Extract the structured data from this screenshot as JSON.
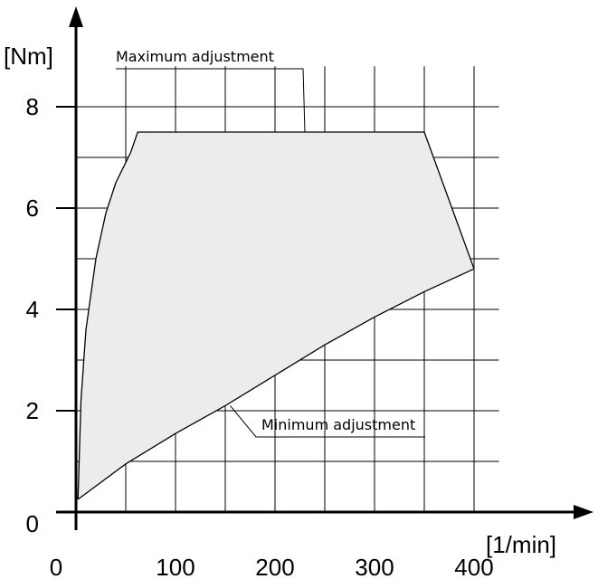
{
  "chart_data": {
    "type": "area",
    "title": "",
    "xlabel": "[1/min]",
    "ylabel": "[Nm]",
    "xlim": [
      0,
      400
    ],
    "ylim": [
      0,
      9
    ],
    "x_ticks": [
      0,
      100,
      200,
      300,
      400
    ],
    "y_ticks": [
      0,
      2,
      4,
      6,
      8
    ],
    "x_tick_labels": [
      "0",
      "100",
      "200",
      "300",
      "400"
    ],
    "y_tick_labels": [
      "0",
      "2",
      "4",
      "6",
      "8"
    ],
    "grid": true,
    "fill_color": "#ececec",
    "line_color": "#000000",
    "region": {
      "upper_boundary": [
        {
          "x": 2,
          "y": 0.25
        },
        {
          "x": 5,
          "y": 2.2
        },
        {
          "x": 10,
          "y": 3.6
        },
        {
          "x": 20,
          "y": 5.0
        },
        {
          "x": 30,
          "y": 5.9
        },
        {
          "x": 40,
          "y": 6.5
        },
        {
          "x": 55,
          "y": 7.1
        },
        {
          "x": 62,
          "y": 7.5
        },
        {
          "x": 350,
          "y": 7.5
        },
        {
          "x": 400,
          "y": 4.8
        }
      ],
      "lower_boundary": [
        {
          "x": 2,
          "y": 0.25
        },
        {
          "x": 50,
          "y": 0.95
        },
        {
          "x": 100,
          "y": 1.55
        },
        {
          "x": 150,
          "y": 2.1
        },
        {
          "x": 200,
          "y": 2.7
        },
        {
          "x": 250,
          "y": 3.3
        },
        {
          "x": 300,
          "y": 3.85
        },
        {
          "x": 350,
          "y": 4.35
        },
        {
          "x": 400,
          "y": 4.8
        }
      ]
    },
    "annotations": [
      {
        "text": "Maximum adjustment",
        "target_x": 230,
        "target_y": 7.5
      },
      {
        "text": "Minimum adjustment",
        "target_x": 155,
        "target_y": 2.1
      }
    ]
  }
}
